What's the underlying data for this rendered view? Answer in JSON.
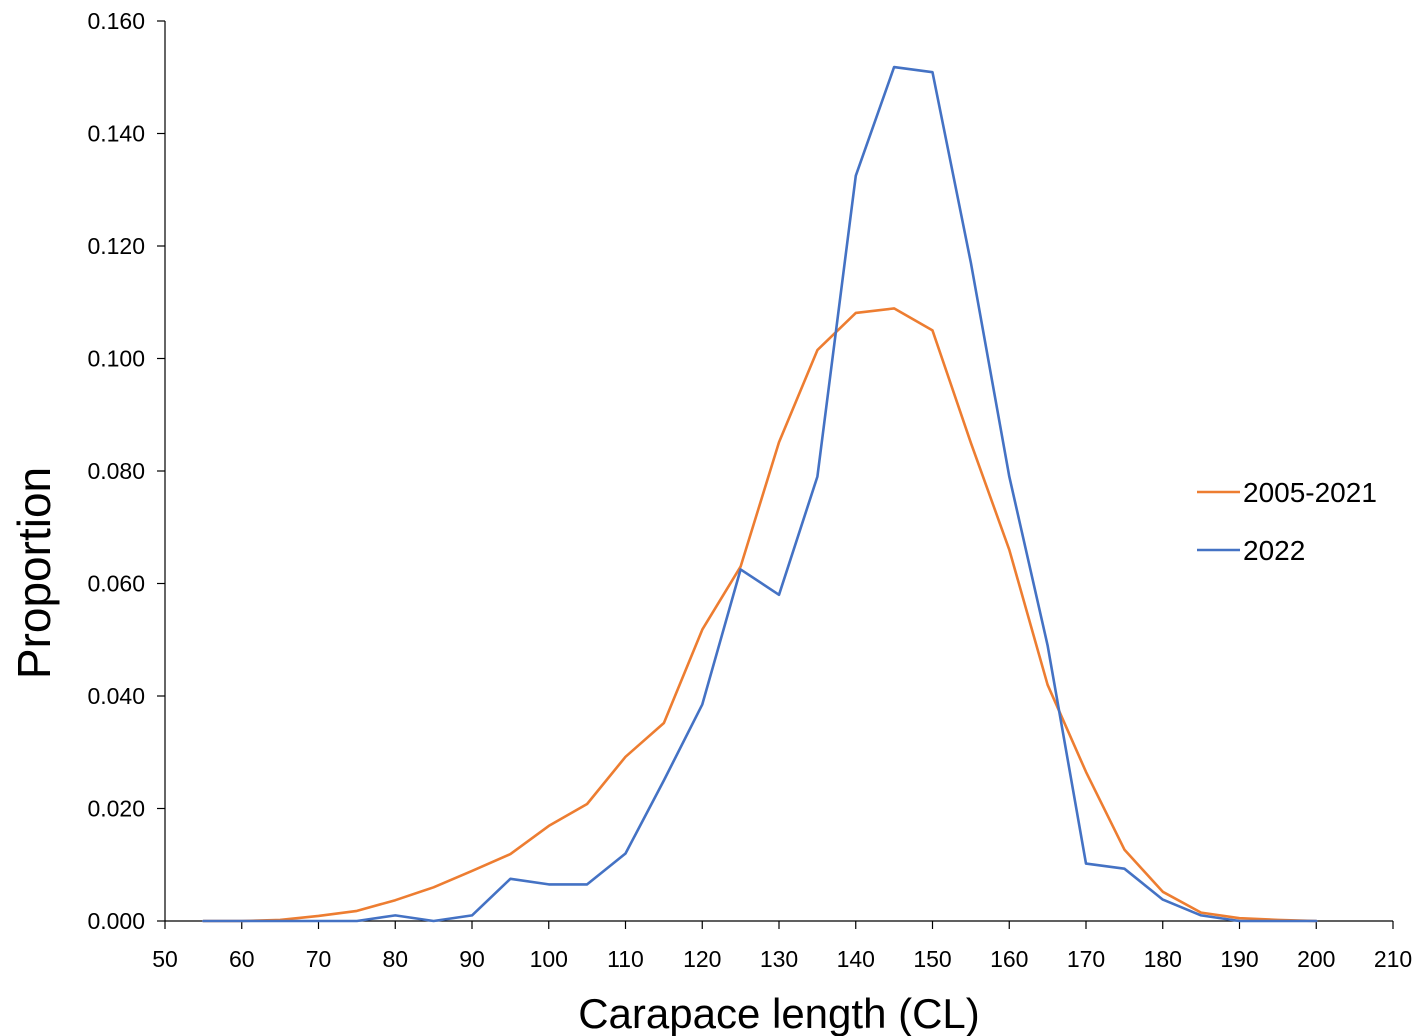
{
  "chart_data": {
    "type": "line",
    "title": "",
    "xlabel": "Carapace length (CL)",
    "ylabel": "Proportion",
    "xlim": [
      50,
      210
    ],
    "ylim": [
      0,
      0.16
    ],
    "x_ticks": [
      "50",
      "60",
      "70",
      "80",
      "90",
      "100",
      "110",
      "120",
      "130",
      "140",
      "150",
      "160",
      "170",
      "180",
      "190",
      "200",
      "210"
    ],
    "y_ticks": [
      "0.000",
      "0.020",
      "0.040",
      "0.060",
      "0.080",
      "0.100",
      "0.120",
      "0.140",
      "0.160"
    ],
    "grid": false,
    "legend_position": "right",
    "x": [
      55,
      60,
      65,
      70,
      75,
      80,
      85,
      90,
      95,
      100,
      105,
      110,
      115,
      120,
      125,
      130,
      135,
      140,
      145,
      150,
      155,
      160,
      165,
      170,
      175,
      180,
      185,
      190,
      195,
      200
    ],
    "series": [
      {
        "name": "2005-2021",
        "color": "#ED7D31",
        "values": [
          0.0,
          0.0,
          0.0002,
          0.0009,
          0.0018,
          0.0037,
          0.006,
          0.0089,
          0.0119,
          0.0169,
          0.0208,
          0.0292,
          0.0352,
          0.0518,
          0.063,
          0.0851,
          0.1015,
          0.1081,
          0.1089,
          0.105,
          0.085,
          0.066,
          0.042,
          0.0265,
          0.0127,
          0.0052,
          0.0015,
          0.0005,
          0.0002,
          0.0
        ]
      },
      {
        "name": "2022",
        "color": "#4472C4",
        "values": [
          0.0,
          0.0,
          0.0,
          0.0,
          0.0,
          0.001,
          0.0,
          0.001,
          0.0075,
          0.0065,
          0.0065,
          0.012,
          0.025,
          0.0385,
          0.0625,
          0.058,
          0.079,
          0.1325,
          0.1518,
          0.1509,
          0.117,
          0.079,
          0.049,
          0.0102,
          0.0093,
          0.0038,
          0.001,
          0.0,
          0.0,
          0.0
        ]
      }
    ]
  }
}
